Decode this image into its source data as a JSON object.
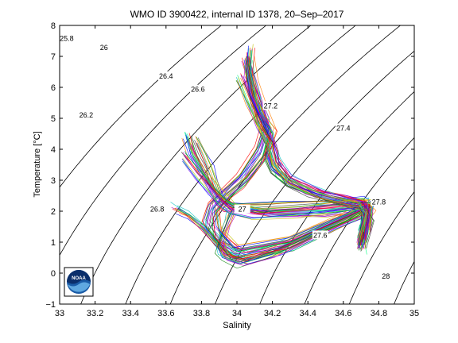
{
  "chart_data": {
    "type": "line",
    "title": "WMO ID 3900422, internal ID 1378, 20–Sep–2017",
    "xlabel": "Salinity",
    "ylabel": "Temperature [°C]",
    "xlim": [
      33,
      35
    ],
    "ylim": [
      -1,
      8
    ],
    "x_ticks": [
      "33",
      "33.2",
      "33.4",
      "33.6",
      "33.8",
      "34",
      "34.2",
      "34.4",
      "34.6",
      "34.8",
      "35"
    ],
    "y_ticks": [
      "−1",
      "0",
      "1",
      "2",
      "3",
      "4",
      "5",
      "6",
      "7",
      "8"
    ],
    "grid": false,
    "legend": "none",
    "logo": "NOAA",
    "density_contours": [
      {
        "label": "25.8",
        "sigma": 25.8,
        "label_x": 33.04,
        "label_y": 7.58
      },
      {
        "label": "26",
        "sigma": 26.0,
        "label_x": 33.25,
        "label_y": 7.28
      },
      {
        "label": "26.2",
        "sigma": 26.2,
        "label_x": 33.15,
        "label_y": 5.1
      },
      {
        "label": "26.4",
        "sigma": 26.4,
        "label_x": 33.6,
        "label_y": 6.36
      },
      {
        "label": "26.6",
        "sigma": 26.6,
        "label_x": 33.78,
        "label_y": 5.93
      },
      {
        "label": "26.8",
        "sigma": 26.8,
        "label_x": 33.55,
        "label_y": 2.06
      },
      {
        "label": "27",
        "sigma": 27.0,
        "label_x": 34.03,
        "label_y": 2.06
      },
      {
        "label": "27.2",
        "sigma": 27.2,
        "label_x": 34.19,
        "label_y": 5.4
      },
      {
        "label": "27.4",
        "sigma": 27.4,
        "label_x": 34.6,
        "label_y": 4.68
      },
      {
        "label": "27.6",
        "sigma": 27.6,
        "label_x": 34.47,
        "label_y": 1.22
      },
      {
        "label": "27.8",
        "sigma": 27.8,
        "label_x": 34.8,
        "label_y": 2.3
      },
      {
        "label": "28",
        "sigma": 28.0,
        "label_x": 34.84,
        "label_y": -0.1
      }
    ],
    "series_colors": [
      "#0000ff",
      "#008000",
      "#ff0000",
      "#00bfbf",
      "#bf00bf",
      "#bfbf00",
      "#404040",
      "#ff7f00",
      "#7f00ff",
      "#00ff7f"
    ],
    "series": [
      {
        "x": [
          34.07,
          34.09,
          34.15,
          34.19,
          34.17,
          34.21,
          34.3,
          34.46,
          34.63,
          34.73,
          34.75,
          34.72,
          34.7,
          34.71
        ],
        "y": [
          7.0,
          6.2,
          5.3,
          4.6,
          3.8,
          3.3,
          2.9,
          2.55,
          2.32,
          2.2,
          2.0,
          1.6,
          1.0,
          0.8
        ]
      },
      {
        "x": [
          34.05,
          34.08,
          34.12,
          34.16,
          34.12,
          34.02,
          33.92,
          33.85,
          33.82,
          33.9,
          34.05,
          34.3,
          34.6,
          34.74,
          34.73,
          34.71
        ],
        "y": [
          6.9,
          6.0,
          5.2,
          4.8,
          4.0,
          3.1,
          2.6,
          2.2,
          1.6,
          1.0,
          0.6,
          0.9,
          1.7,
          2.1,
          1.6,
          1.0
        ]
      },
      {
        "x": [
          33.76,
          33.8,
          33.84,
          33.87,
          33.9,
          33.95,
          34.0,
          34.2,
          34.45,
          34.7,
          34.75,
          34.72,
          34.7
        ],
        "y": [
          4.3,
          3.8,
          3.3,
          2.8,
          2.4,
          2.15,
          2.1,
          2.15,
          2.25,
          2.3,
          2.05,
          1.5,
          0.9
        ]
      },
      {
        "x": [
          33.72,
          33.75,
          33.8,
          33.85,
          33.9,
          33.95,
          33.98,
          34.2,
          34.5,
          34.72,
          34.74,
          34.71
        ],
        "y": [
          4.5,
          3.9,
          3.4,
          2.9,
          2.5,
          2.3,
          2.2,
          2.0,
          2.0,
          2.15,
          1.8,
          1.1
        ]
      },
      {
        "x": [
          33.65,
          33.72,
          33.8,
          33.88,
          33.95,
          34.05,
          34.25,
          34.55,
          34.74,
          34.73
        ],
        "y": [
          2.1,
          1.9,
          1.5,
          1.0,
          0.6,
          0.4,
          0.8,
          1.6,
          2.05,
          1.4
        ]
      },
      {
        "x": [
          33.98,
          33.95,
          33.92,
          33.9,
          33.93,
          34.02,
          34.2,
          34.45,
          34.68,
          34.75,
          34.72
        ],
        "y": [
          2.0,
          1.6,
          1.2,
          0.8,
          0.5,
          0.3,
          0.6,
          1.3,
          1.9,
          2.1,
          1.3
        ]
      },
      {
        "x": [
          34.06,
          34.1,
          34.13,
          34.18,
          34.22,
          34.28,
          34.4,
          34.6,
          34.74,
          34.7
        ],
        "y": [
          6.7,
          5.6,
          4.9,
          4.3,
          3.6,
          3.0,
          2.6,
          2.3,
          2.1,
          0.9
        ]
      },
      {
        "x": [
          34.08,
          34.07,
          34.1,
          34.14,
          34.2,
          34.16,
          34.06,
          33.96,
          33.88,
          33.9,
          34.0,
          34.3,
          34.62,
          34.73,
          34.71
        ],
        "y": [
          7.2,
          6.4,
          5.6,
          5.0,
          4.5,
          3.7,
          3.0,
          2.5,
          2.0,
          1.3,
          0.7,
          1.0,
          1.8,
          2.1,
          1.0
        ]
      },
      {
        "x": [
          33.7,
          33.78,
          33.86,
          33.92,
          33.97,
          34.1,
          34.35,
          34.6,
          34.74,
          34.72
        ],
        "y": [
          3.8,
          3.2,
          2.7,
          2.3,
          2.05,
          1.9,
          2.0,
          2.15,
          2.2,
          1.5
        ]
      },
      {
        "x": [
          34.02,
          34.08,
          34.14,
          34.2,
          34.22,
          34.3,
          34.5,
          34.7,
          34.74,
          34.71
        ],
        "y": [
          6.3,
          5.5,
          4.7,
          4.1,
          3.5,
          3.0,
          2.5,
          2.25,
          1.9,
          1.0
        ]
      }
    ]
  }
}
